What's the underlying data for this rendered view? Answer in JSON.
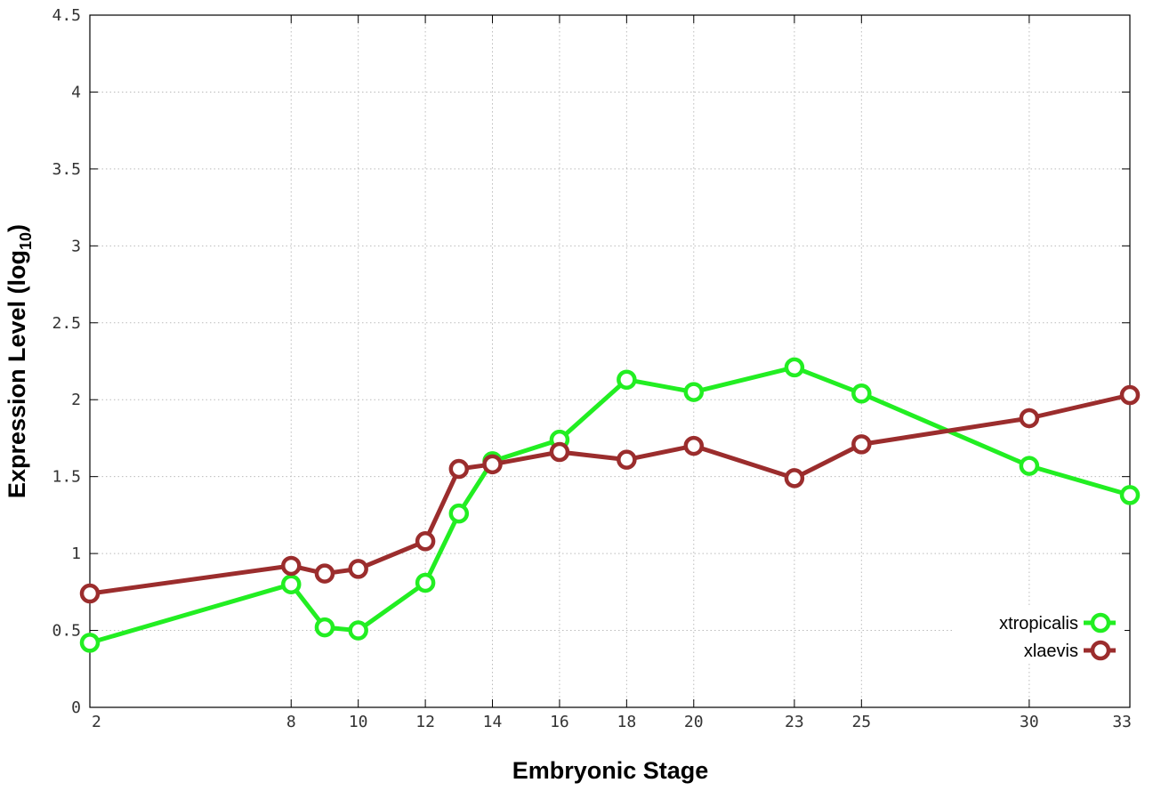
{
  "chart_data": {
    "type": "line",
    "xlabel": "Embryonic Stage",
    "ylabel_main": "Expression Level (log",
    "ylabel_sub": "10",
    "ylabel_close": ")",
    "ylim": [
      0,
      4.5
    ],
    "xlim": [
      2,
      33
    ],
    "grid": true,
    "legend_position": "bottom-right",
    "x_ticks": [
      "2",
      "8",
      "10",
      "12",
      "14",
      "16",
      "18",
      "20",
      "23",
      "25",
      "30",
      "33"
    ],
    "y_ticks": [
      "0",
      "0.5",
      "1",
      "1.5",
      "2",
      "2.5",
      "3",
      "3.5",
      "4",
      "4.5"
    ],
    "series": [
      {
        "name": "xtropicalis",
        "color": "#22ee22",
        "points": [
          {
            "x": 2,
            "y": 0.42
          },
          {
            "x": 8,
            "y": 0.8
          },
          {
            "x": 9,
            "y": 0.52
          },
          {
            "x": 10,
            "y": 0.5
          },
          {
            "x": 12,
            "y": 0.81
          },
          {
            "x": 13,
            "y": 1.26
          },
          {
            "x": 14,
            "y": 1.6
          },
          {
            "x": 16,
            "y": 1.74
          },
          {
            "x": 18,
            "y": 2.13
          },
          {
            "x": 20,
            "y": 2.05
          },
          {
            "x": 23,
            "y": 2.21
          },
          {
            "x": 25,
            "y": 2.04
          },
          {
            "x": 30,
            "y": 1.57
          },
          {
            "x": 33,
            "y": 1.38
          }
        ]
      },
      {
        "name": "xlaevis",
        "color": "#9b2d2d",
        "points": [
          {
            "x": 2,
            "y": 0.74
          },
          {
            "x": 8,
            "y": 0.92
          },
          {
            "x": 9,
            "y": 0.87
          },
          {
            "x": 10,
            "y": 0.9
          },
          {
            "x": 12,
            "y": 1.08
          },
          {
            "x": 13,
            "y": 1.55
          },
          {
            "x": 14,
            "y": 1.58
          },
          {
            "x": 16,
            "y": 1.66
          },
          {
            "x": 18,
            "y": 1.61
          },
          {
            "x": 20,
            "y": 1.7
          },
          {
            "x": 23,
            "y": 1.49
          },
          {
            "x": 25,
            "y": 1.71
          },
          {
            "x": 30,
            "y": 1.88
          },
          {
            "x": 33,
            "y": 2.03
          }
        ]
      }
    ]
  }
}
